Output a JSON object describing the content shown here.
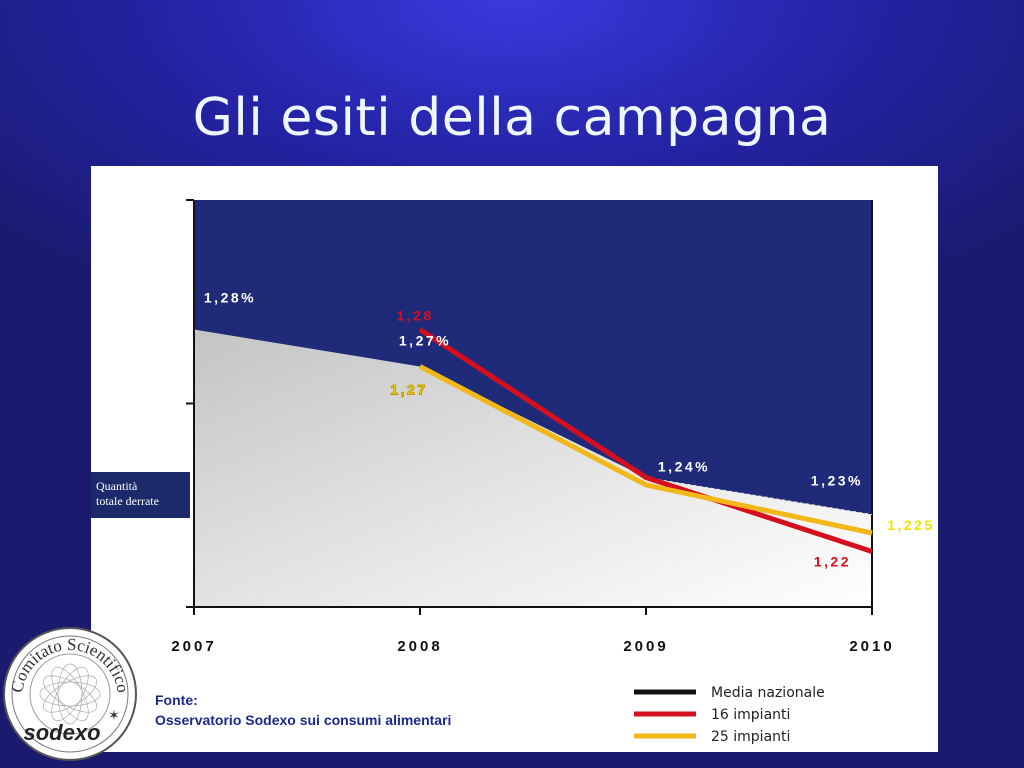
{
  "title": "Gli esiti della campagna",
  "side_label": [
    "Quantità",
    "totale derrate"
  ],
  "source": {
    "label": "Fonte:",
    "text": "Osservatorio Sodexo sui consumi alimentari"
  },
  "logo": {
    "ring_text": "Comitato Scientifico",
    "brand": "sodexo"
  },
  "chart_data": {
    "type": "line",
    "categories": [
      "2007",
      "2008",
      "2009",
      "2010"
    ],
    "series": [
      {
        "name": "Media nazionale",
        "color": "#111111",
        "x": [
          "2007",
          "2008",
          "2009",
          "2010"
        ],
        "values": [
          1.28,
          1.27,
          1.24,
          1.23
        ],
        "labels": [
          "1,28%",
          "1,27%",
          "1,24%",
          "1,23%"
        ],
        "label_color": "#ffffff"
      },
      {
        "name": "16 impianti",
        "color": "#d4101e",
        "x": [
          "2008",
          "2009",
          "2010"
        ],
        "values": [
          1.28,
          1.24,
          1.22
        ],
        "labels": [
          "1,28",
          "",
          "1,22"
        ],
        "label_color": "#d4101e"
      },
      {
        "name": "25 impianti",
        "color": "#f2b81a",
        "x": [
          "2008",
          "2009",
          "2010"
        ],
        "values": [
          1.27,
          1.238,
          1.225
        ],
        "labels": [
          "1,27",
          "",
          "1,225"
        ],
        "label_color": "#f4e200"
      }
    ],
    "background_area": {
      "fill_above": "#1f2b78",
      "fill_below": "#d2d2d2"
    },
    "legend_position": "bottom-right",
    "grid": false
  }
}
